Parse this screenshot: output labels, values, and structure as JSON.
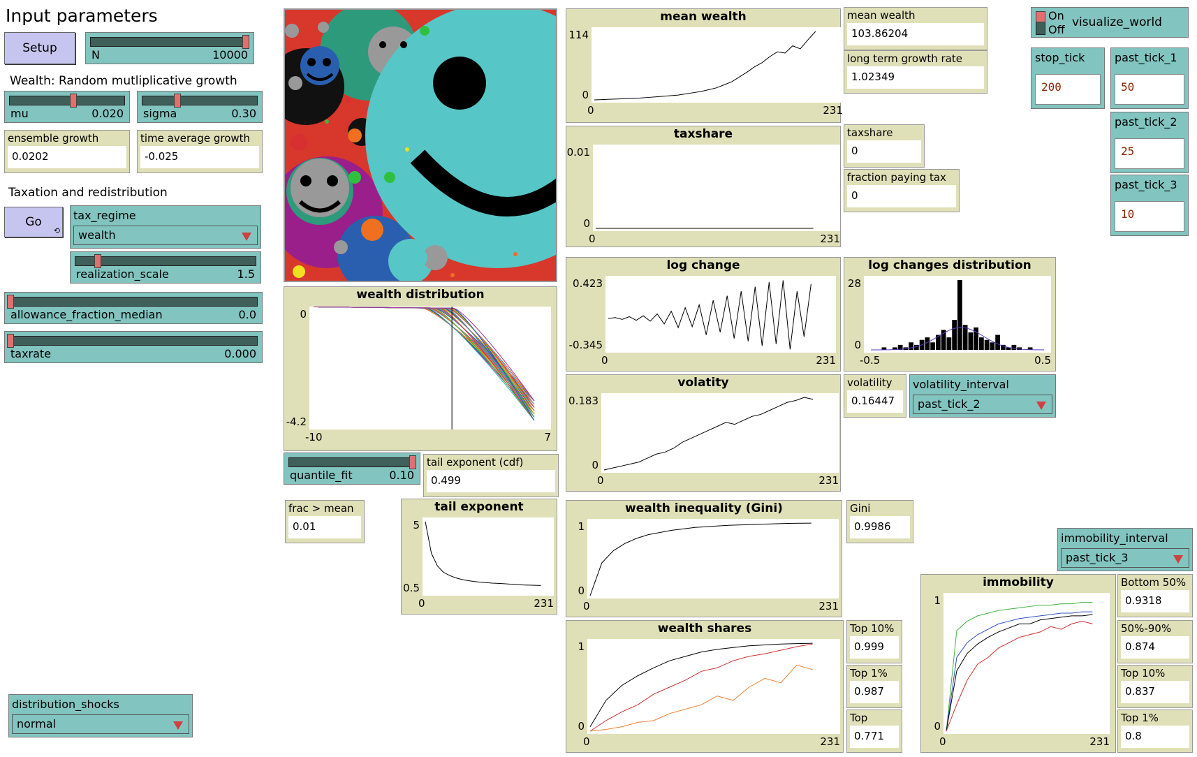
{
  "header": {
    "title": "Input parameters"
  },
  "sections": {
    "wealth": "Wealth: Random mutliplicative growth",
    "tax": "Taxation and redistribution"
  },
  "buttons": {
    "setup": "Setup",
    "go": "Go"
  },
  "sliders": {
    "N": {
      "name": "N",
      "value": "10000",
      "fraction": 0.98
    },
    "mu": {
      "name": "mu",
      "value": "0.020",
      "fraction": 0.55
    },
    "sigma": {
      "name": "sigma",
      "value": "0.30",
      "fraction": 0.3
    },
    "realization_scale": {
      "name": "realization_scale",
      "value": "1.5",
      "fraction": 0.12
    },
    "allowance": {
      "name": "allowance_fraction_median",
      "value": "0.0",
      "fraction": 0.0
    },
    "taxrate": {
      "name": "taxrate",
      "value": "0.000",
      "fraction": 0.0
    },
    "quantile_fit": {
      "name": "quantile_fit",
      "value": "0.10",
      "fraction": 0.98
    }
  },
  "monitors": {
    "ensemble_growth": {
      "label": "ensemble growth",
      "value": "0.0202"
    },
    "time_average_growth": {
      "label": "time average growth",
      "value": "-0.025"
    },
    "mean_wealth": {
      "label": "mean wealth",
      "value": "103.86204"
    },
    "long_term_growth": {
      "label": "long term growth rate",
      "value": "1.02349"
    },
    "taxshare": {
      "label": "taxshare",
      "value": "0"
    },
    "fraction_paying_tax": {
      "label": "fraction paying tax",
      "value": "0"
    },
    "volatility": {
      "label": "volatility",
      "value": "0.16447"
    },
    "tail_exponent_cdf": {
      "label": "tail exponent (cdf)",
      "value": "0.499"
    },
    "frac_mean": {
      "label": "frac > mean",
      "value": "0.01"
    },
    "gini": {
      "label": "Gini",
      "value": "0.9986"
    },
    "top10": {
      "label": "Top 10%",
      "value": "0.999"
    },
    "top1": {
      "label": "Top 1%",
      "value": "0.987"
    },
    "top": {
      "label": "Top",
      "value": "0.771"
    },
    "bottom50": {
      "label": "Bottom 50%",
      "value": "0.9318"
    },
    "mid": {
      "label": "50%-90%",
      "value": "0.874"
    },
    "imm_top10": {
      "label": "Top 10%",
      "value": "0.837"
    },
    "imm_top1": {
      "label": "Top 1%",
      "value": "0.8"
    }
  },
  "choosers": {
    "tax_regime": {
      "name": "tax_regime",
      "value": "wealth"
    },
    "volatility_interval": {
      "name": "volatility_interval",
      "value": "past_tick_2"
    },
    "immobility_interval": {
      "name": "immobility_interval",
      "value": "past_tick_3"
    },
    "distribution_shocks": {
      "name": "distribution_shocks",
      "value": "normal"
    }
  },
  "switch": {
    "on": "On",
    "off": "Off",
    "name": "visualize_world"
  },
  "inputs": {
    "stop_tick": {
      "name": "stop_tick",
      "value": "200"
    },
    "past_tick_1": {
      "name": "past_tick_1",
      "value": "50"
    },
    "past_tick_2": {
      "name": "past_tick_2",
      "value": "25"
    },
    "past_tick_3": {
      "name": "past_tick_3",
      "value": "10"
    }
  },
  "chart_data": [
    {
      "type": "line",
      "title": "mean wealth",
      "xlim": [
        0,
        231
      ],
      "ylim": [
        0,
        114
      ],
      "xticks": [
        "0",
        "231"
      ],
      "yticks": [
        "0",
        "114"
      ],
      "series": [
        {
          "color": "#000000",
          "values": [
            0,
            0.5,
            1,
            1.5,
            2,
            2.5,
            3,
            4,
            5,
            6,
            7,
            8,
            10,
            12,
            14,
            17,
            20,
            25,
            30,
            38,
            46,
            55,
            62,
            72,
            80,
            78,
            90,
            85,
            100,
            114
          ]
        }
      ]
    },
    {
      "type": "line",
      "title": "taxshare",
      "xlim": [
        0,
        231
      ],
      "ylim": [
        0,
        0.01
      ],
      "xticks": [
        "0",
        "231"
      ],
      "yticks": [
        "0",
        "0.01"
      ],
      "series": [
        {
          "color": "#000000",
          "values": [
            0,
            0,
            0,
            0,
            0,
            0,
            0,
            0,
            0,
            0
          ]
        }
      ]
    },
    {
      "type": "line",
      "title": "log change",
      "xlim": [
        0,
        231
      ],
      "ylim": [
        -0.345,
        0.423
      ],
      "xticks": [
        "0",
        "231"
      ],
      "yticks": [
        "-0.345",
        "0.423"
      ],
      "series": [
        {
          "color": "#000000",
          "values": [
            0,
            0.01,
            -0.01,
            0.02,
            -0.02,
            0.03,
            -0.03,
            0.05,
            -0.06,
            0.08,
            -0.1,
            0.12,
            -0.09,
            0.15,
            -0.18,
            0.2,
            -0.15,
            0.25,
            -0.22,
            0.3,
            -0.25,
            0.35,
            -0.3,
            0.4,
            -0.28,
            0.42,
            -0.34,
            0.3,
            -0.2,
            0.38
          ]
        }
      ]
    },
    {
      "type": "bar",
      "title": "log changes distribution",
      "xlim": [
        -0.5,
        0.5
      ],
      "ylim": [
        0,
        28
      ],
      "xticks": [
        "-0.5",
        "0.5"
      ],
      "yticks": [
        "0",
        "28"
      ],
      "values": [
        0,
        0,
        1,
        0,
        1,
        2,
        1,
        3,
        2,
        4,
        5,
        3,
        6,
        8,
        5,
        12,
        28,
        10,
        7,
        9,
        5,
        4,
        3,
        6,
        2,
        1,
        2,
        1,
        0,
        1,
        0,
        0
      ]
    },
    {
      "type": "line",
      "title": "volatity",
      "xlim": [
        0,
        231
      ],
      "ylim": [
        0,
        0.183
      ],
      "xticks": [
        "0",
        "231"
      ],
      "yticks": [
        "0",
        "0.183"
      ],
      "series": [
        {
          "color": "#000000",
          "values": [
            0,
            0.005,
            0.01,
            0.015,
            0.02,
            0.03,
            0.04,
            0.045,
            0.055,
            0.07,
            0.08,
            0.09,
            0.1,
            0.11,
            0.12,
            0.115,
            0.125,
            0.135,
            0.14,
            0.15,
            0.16,
            0.17,
            0.175,
            0.183,
            0.178
          ]
        }
      ]
    },
    {
      "type": "line",
      "title": "wealth inequality (Gini)",
      "xlim": [
        0,
        231
      ],
      "ylim": [
        0,
        1
      ],
      "xticks": [
        "0",
        "231"
      ],
      "yticks": [
        "0",
        "1"
      ],
      "series": [
        {
          "color": "#000000",
          "values": [
            0,
            0.45,
            0.62,
            0.72,
            0.79,
            0.84,
            0.87,
            0.9,
            0.92,
            0.94,
            0.95,
            0.96,
            0.97,
            0.975,
            0.98,
            0.985,
            0.99,
            0.995,
            0.998,
            0.999
          ]
        }
      ]
    },
    {
      "type": "line",
      "title": "wealth shares",
      "xlim": [
        0,
        231
      ],
      "ylim": [
        0,
        1
      ],
      "xticks": [
        "0",
        "231"
      ],
      "yticks": [
        "0",
        "1"
      ],
      "series": [
        {
          "color": "#000000",
          "values": [
            0.05,
            0.35,
            0.52,
            0.63,
            0.72,
            0.8,
            0.85,
            0.9,
            0.93,
            0.95,
            0.97,
            0.98,
            0.99,
            0.995,
            0.999
          ]
        },
        {
          "color": "#d03030",
          "values": [
            0,
            0.12,
            0.22,
            0.3,
            0.42,
            0.5,
            0.58,
            0.68,
            0.72,
            0.8,
            0.85,
            0.88,
            0.92,
            0.96,
            0.99
          ]
        },
        {
          "color": "#f08030",
          "values": [
            0,
            0.02,
            0.05,
            0.1,
            0.12,
            0.2,
            0.25,
            0.3,
            0.4,
            0.35,
            0.5,
            0.6,
            0.55,
            0.75,
            0.7
          ]
        }
      ]
    },
    {
      "type": "line",
      "title": "wealth distribution",
      "xlim": [
        -10,
        7
      ],
      "ylim": [
        -4.2,
        0
      ],
      "xticks": [
        "-10",
        "7"
      ],
      "yticks": [
        "-4.2",
        "0"
      ]
    },
    {
      "type": "line",
      "title": "tail exponent",
      "xlim": [
        0,
        231
      ],
      "ylim": [
        0.5,
        5
      ],
      "xticks": [
        "0",
        "231"
      ],
      "yticks": [
        "0.5",
        "5"
      ],
      "series": [
        {
          "color": "#000000",
          "values": [
            5,
            3,
            2.2,
            1.8,
            1.6,
            1.45,
            1.35,
            1.28,
            1.22,
            1.18,
            1.15,
            1.12,
            1.1,
            1.08,
            1.05,
            1.03,
            1.0,
            0.99,
            0.98,
            0.97
          ]
        }
      ]
    },
    {
      "type": "line",
      "title": "immobility",
      "xlim": [
        0,
        231
      ],
      "ylim": [
        0,
        1
      ],
      "xticks": [
        "0",
        "231"
      ],
      "yticks": [
        "0",
        "1"
      ],
      "series": [
        {
          "color": "#40b040",
          "values": [
            0,
            0.75,
            0.82,
            0.86,
            0.88,
            0.9,
            0.91,
            0.92,
            0.93,
            0.94,
            0.94,
            0.95,
            0.95,
            0.96,
            0.96
          ]
        },
        {
          "color": "#3050c0",
          "values": [
            0,
            0.55,
            0.66,
            0.72,
            0.76,
            0.8,
            0.82,
            0.84,
            0.85,
            0.86,
            0.87,
            0.88,
            0.88,
            0.89,
            0.89
          ]
        },
        {
          "color": "#000000",
          "values": [
            0,
            0.45,
            0.58,
            0.65,
            0.7,
            0.74,
            0.77,
            0.8,
            0.8,
            0.83,
            0.84,
            0.85,
            0.86,
            0.86,
            0.87
          ]
        },
        {
          "color": "#d03030",
          "values": [
            0,
            0.2,
            0.38,
            0.5,
            0.55,
            0.62,
            0.66,
            0.7,
            0.72,
            0.74,
            0.78,
            0.76,
            0.8,
            0.82,
            0.8
          ]
        }
      ]
    }
  ]
}
